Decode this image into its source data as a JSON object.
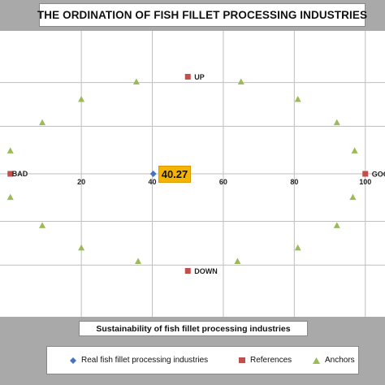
{
  "chart_data": {
    "type": "scatter",
    "title": "THE ORDINATION OF FISH FILLET PROCESSING INDUSTRIES",
    "xlabel": "Sustainability of fish fillet processing industries",
    "ylabel": "",
    "xlim": [
      -2,
      106
    ],
    "ylim": [
      -60,
      60
    ],
    "x_ticks": [
      {
        "value": 20,
        "label": "20"
      },
      {
        "value": 40,
        "label": "40"
      },
      {
        "value": 60,
        "label": "60"
      },
      {
        "value": 80,
        "label": "80"
      },
      {
        "value": 100,
        "label": "100"
      }
    ],
    "y_gridlines": [
      -47,
      -24.5,
      0,
      24.5,
      47
    ],
    "grid": true,
    "series": [
      {
        "name": "Real fish fillet processing industries",
        "marker": "diamond",
        "color": "#4472c4",
        "points": [
          {
            "x": 40.27,
            "y": 0
          }
        ]
      },
      {
        "name": "References",
        "marker": "square",
        "color": "#c0504d",
        "points": [
          {
            "x": 0,
            "y": 0,
            "label": "BAD"
          },
          {
            "x": 100,
            "y": 0,
            "label": "GOOD"
          },
          {
            "x": 50,
            "y": 50,
            "label": "UP"
          },
          {
            "x": 50,
            "y": -50,
            "label": "DOWN"
          }
        ]
      },
      {
        "name": "Anchors",
        "marker": "triangle",
        "color": "#9bbb59",
        "points": [
          {
            "x": 35.5,
            "y": 47.5
          },
          {
            "x": 65,
            "y": 47.5
          },
          {
            "x": 20,
            "y": 38.5
          },
          {
            "x": 81,
            "y": 38.5
          },
          {
            "x": 9,
            "y": 26.5
          },
          {
            "x": 92,
            "y": 26.5
          },
          {
            "x": 0,
            "y": 12
          },
          {
            "x": 97,
            "y": 12
          },
          {
            "x": 0,
            "y": -12
          },
          {
            "x": 96.5,
            "y": -12
          },
          {
            "x": 9,
            "y": -26.5
          },
          {
            "x": 92,
            "y": -26.5
          },
          {
            "x": 20,
            "y": -38
          },
          {
            "x": 81,
            "y": -38
          },
          {
            "x": 36,
            "y": -45
          },
          {
            "x": 64,
            "y": -45
          }
        ]
      }
    ],
    "annotations": [
      {
        "text": "40.27",
        "x": 40.27,
        "y": 0,
        "color": "#f5b400"
      }
    ],
    "legend_position": "bottom"
  },
  "legend": {
    "items": [
      {
        "label": "Real fish fillet processing industries"
      },
      {
        "label": "References"
      },
      {
        "label": "Anchors"
      }
    ]
  }
}
